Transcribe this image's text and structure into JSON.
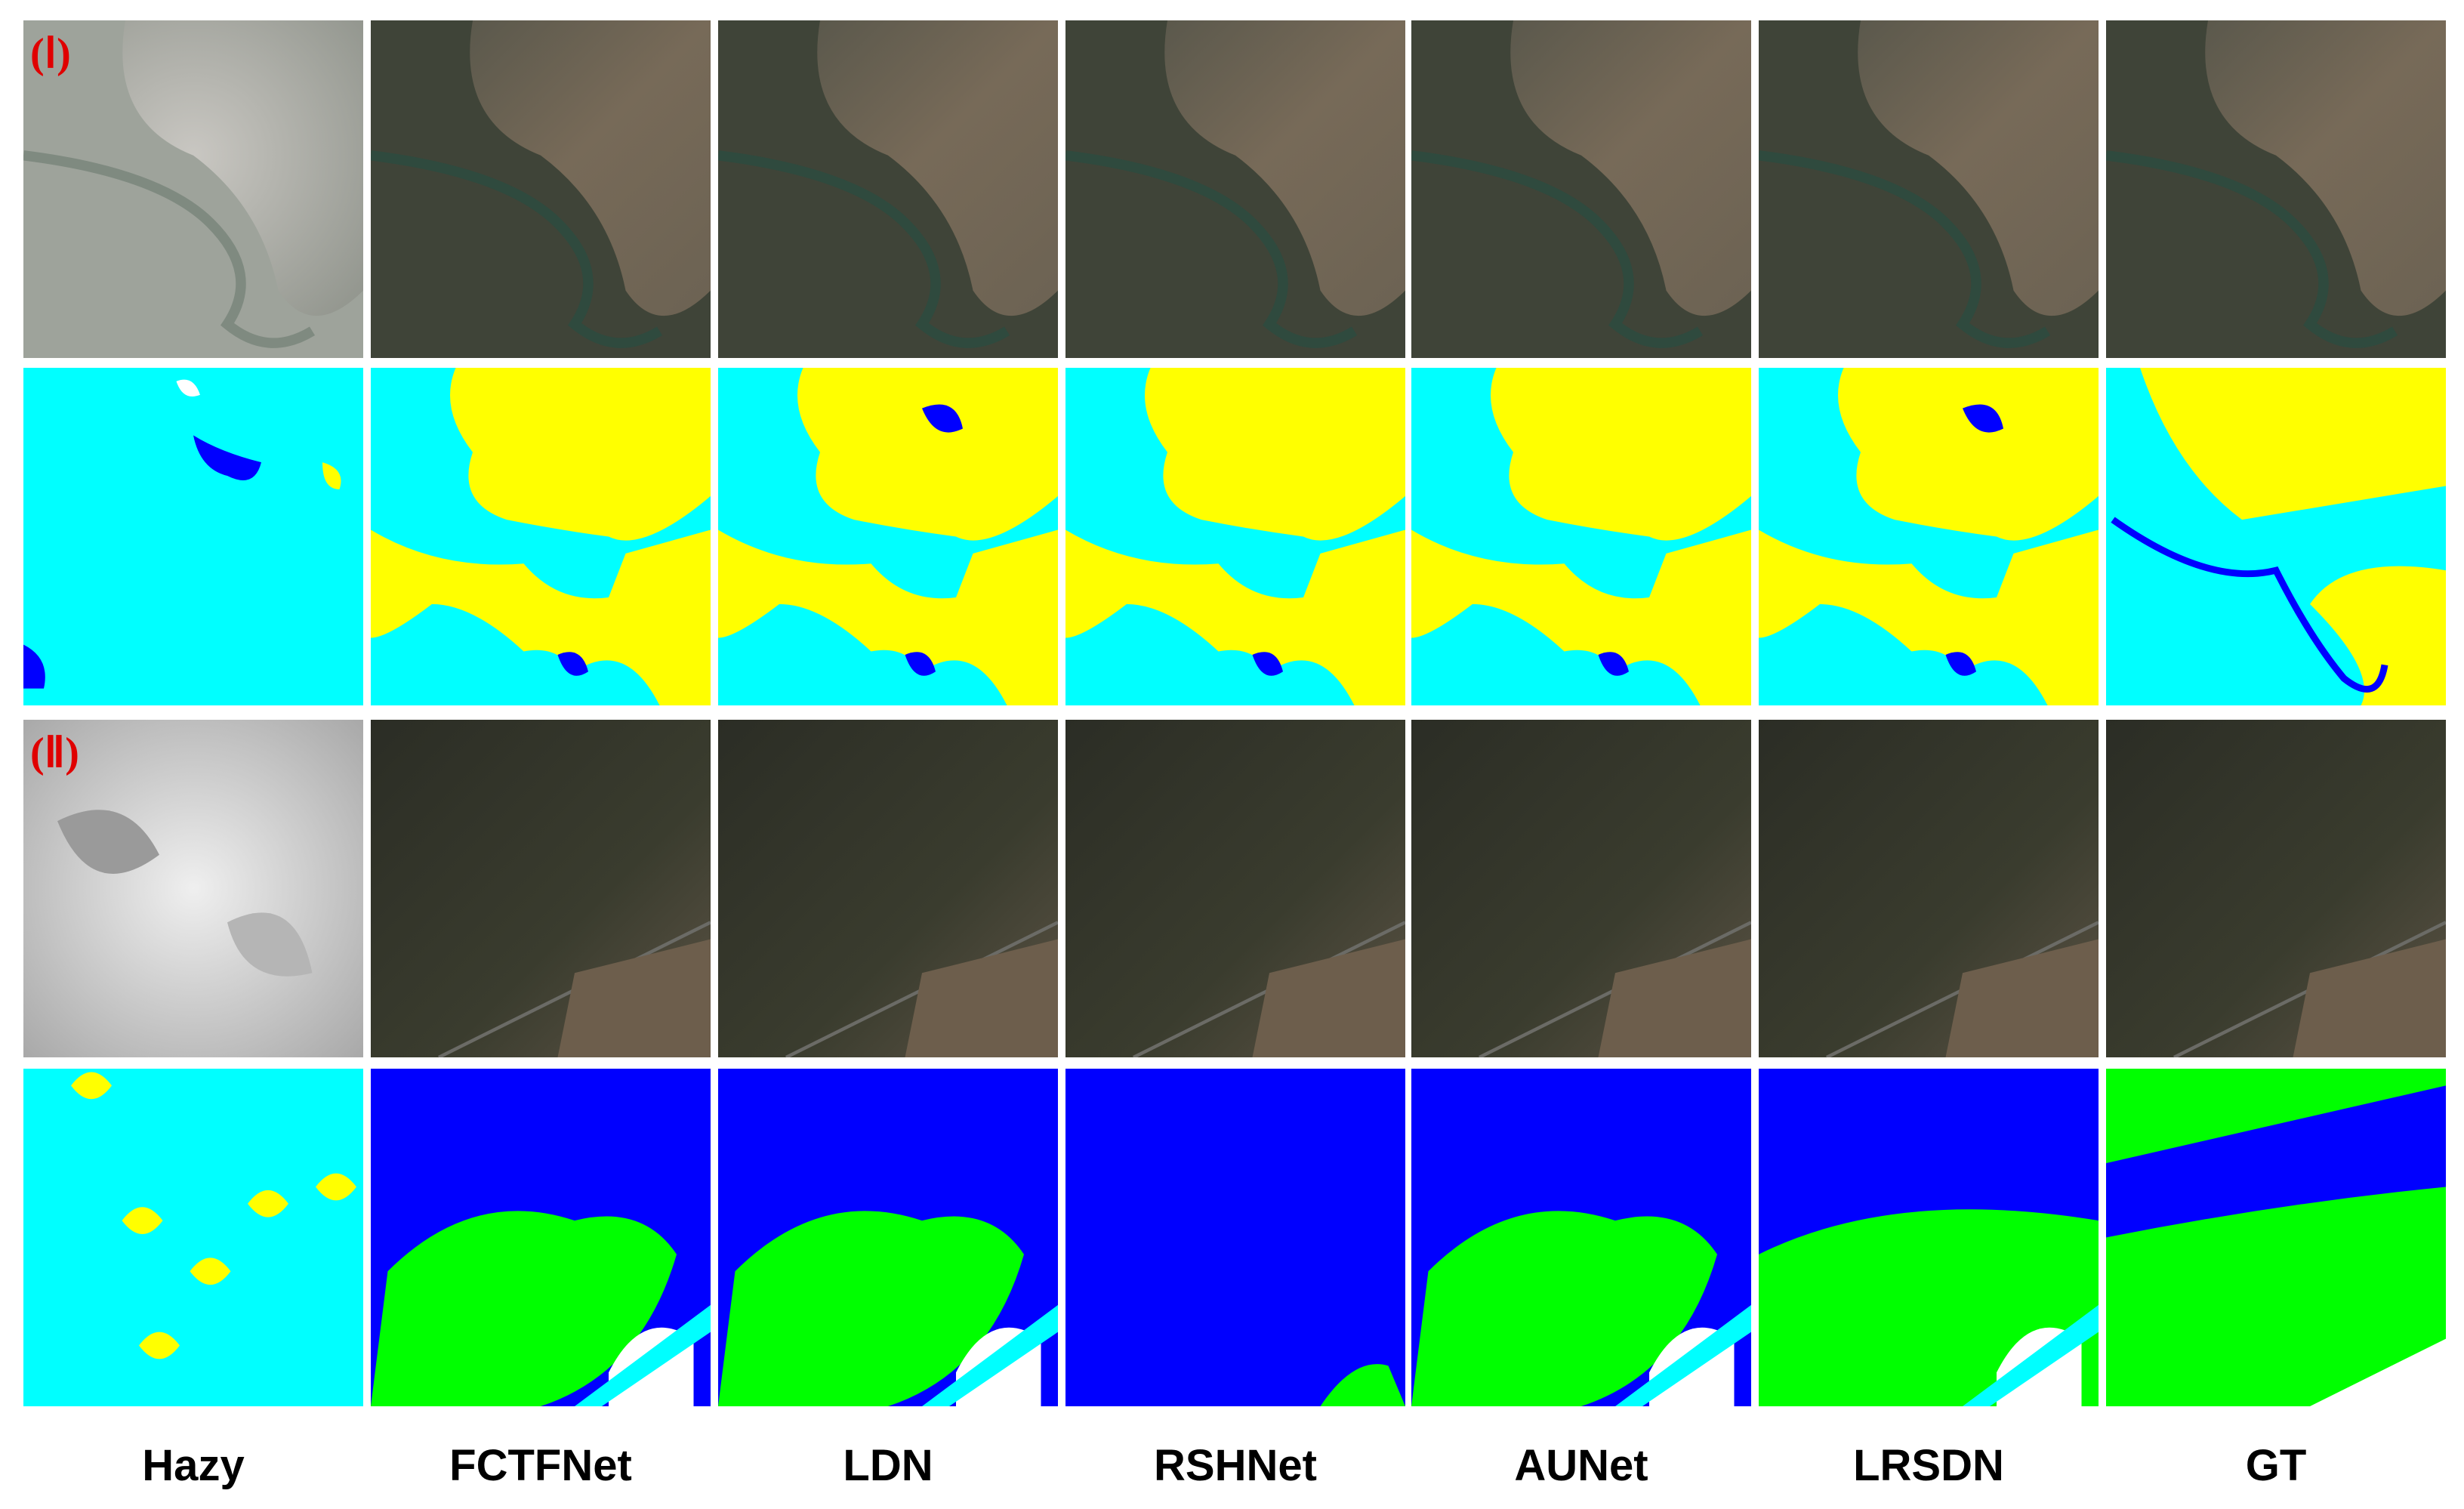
{
  "row_labels": [
    "(Ⅰ)",
    "(Ⅱ)"
  ],
  "column_labels": [
    "Hazy",
    "FCTFNet",
    "LDN",
    "RSHNet",
    "AUNet",
    "LRSDN",
    "GT"
  ]
}
